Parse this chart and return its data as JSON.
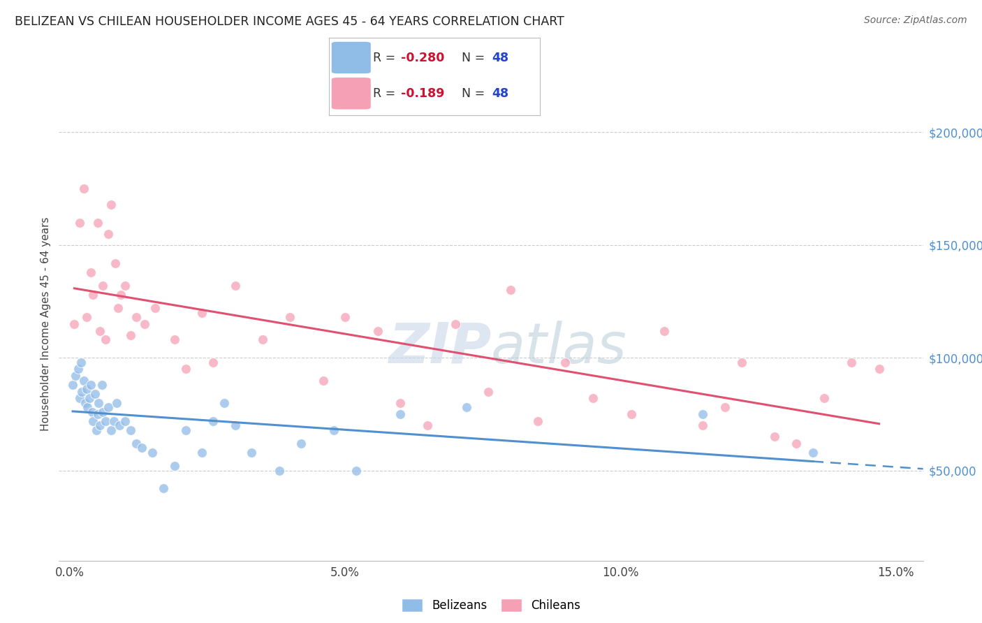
{
  "title": "BELIZEAN VS CHILEAN HOUSEHOLDER INCOME AGES 45 - 64 YEARS CORRELATION CHART",
  "source": "Source: ZipAtlas.com",
  "ylabel": "Householder Income Ages 45 - 64 years",
  "xlabel_ticks": [
    "0.0%",
    "5.0%",
    "10.0%",
    "15.0%"
  ],
  "xlabel_vals": [
    0.0,
    5.0,
    10.0,
    15.0
  ],
  "ylabel_ticks": [
    "$50,000",
    "$100,000",
    "$150,000",
    "$200,000"
  ],
  "ylabel_vals": [
    50000,
    100000,
    150000,
    200000
  ],
  "xlim": [
    -0.2,
    15.5
  ],
  "ylim": [
    10000,
    220000
  ],
  "belize_R": -0.28,
  "belize_N": 48,
  "chile_R": -0.189,
  "chile_N": 48,
  "belize_color": "#90bce8",
  "chile_color": "#f5a0b5",
  "belize_line_color": "#5090d0",
  "chile_line_color": "#e05070",
  "background_color": "#ffffff",
  "grid_color": "#cccccc",
  "title_color": "#222222",
  "source_color": "#666666",
  "watermark_color": "#c8d8e8",
  "legend_r_color": "#cc1133",
  "legend_n_color": "#2244cc",
  "belize_x": [
    0.05,
    0.1,
    0.15,
    0.18,
    0.2,
    0.22,
    0.25,
    0.28,
    0.3,
    0.32,
    0.35,
    0.38,
    0.4,
    0.42,
    0.45,
    0.48,
    0.5,
    0.52,
    0.55,
    0.58,
    0.6,
    0.65,
    0.7,
    0.75,
    0.8,
    0.85,
    0.9,
    1.0,
    1.1,
    1.2,
    1.3,
    1.5,
    1.7,
    1.9,
    2.1,
    2.4,
    2.6,
    2.8,
    3.0,
    3.3,
    3.8,
    4.2,
    4.8,
    5.2,
    6.0,
    7.2,
    11.5,
    13.5
  ],
  "belize_y": [
    88000,
    92000,
    95000,
    82000,
    98000,
    85000,
    90000,
    80000,
    86000,
    78000,
    82000,
    88000,
    76000,
    72000,
    84000,
    68000,
    75000,
    80000,
    70000,
    88000,
    76000,
    72000,
    78000,
    68000,
    72000,
    80000,
    70000,
    72000,
    68000,
    62000,
    60000,
    58000,
    42000,
    52000,
    68000,
    58000,
    72000,
    80000,
    70000,
    58000,
    50000,
    62000,
    68000,
    50000,
    75000,
    78000,
    75000,
    58000
  ],
  "chile_x": [
    0.08,
    0.18,
    0.25,
    0.3,
    0.38,
    0.42,
    0.5,
    0.55,
    0.6,
    0.65,
    0.7,
    0.75,
    0.82,
    0.88,
    0.92,
    1.0,
    1.1,
    1.2,
    1.35,
    1.55,
    1.9,
    2.1,
    2.4,
    2.6,
    3.0,
    3.5,
    4.0,
    4.6,
    5.0,
    5.6,
    6.0,
    6.5,
    7.0,
    7.6,
    8.0,
    8.5,
    9.0,
    9.5,
    10.2,
    10.8,
    11.5,
    11.9,
    12.2,
    12.8,
    13.2,
    13.7,
    14.2,
    14.7
  ],
  "chile_y": [
    115000,
    160000,
    175000,
    118000,
    138000,
    128000,
    160000,
    112000,
    132000,
    108000,
    155000,
    168000,
    142000,
    122000,
    128000,
    132000,
    110000,
    118000,
    115000,
    122000,
    108000,
    95000,
    120000,
    98000,
    132000,
    108000,
    118000,
    90000,
    118000,
    112000,
    80000,
    70000,
    115000,
    85000,
    130000,
    72000,
    98000,
    82000,
    75000,
    112000,
    70000,
    78000,
    98000,
    65000,
    62000,
    82000,
    98000,
    95000
  ]
}
